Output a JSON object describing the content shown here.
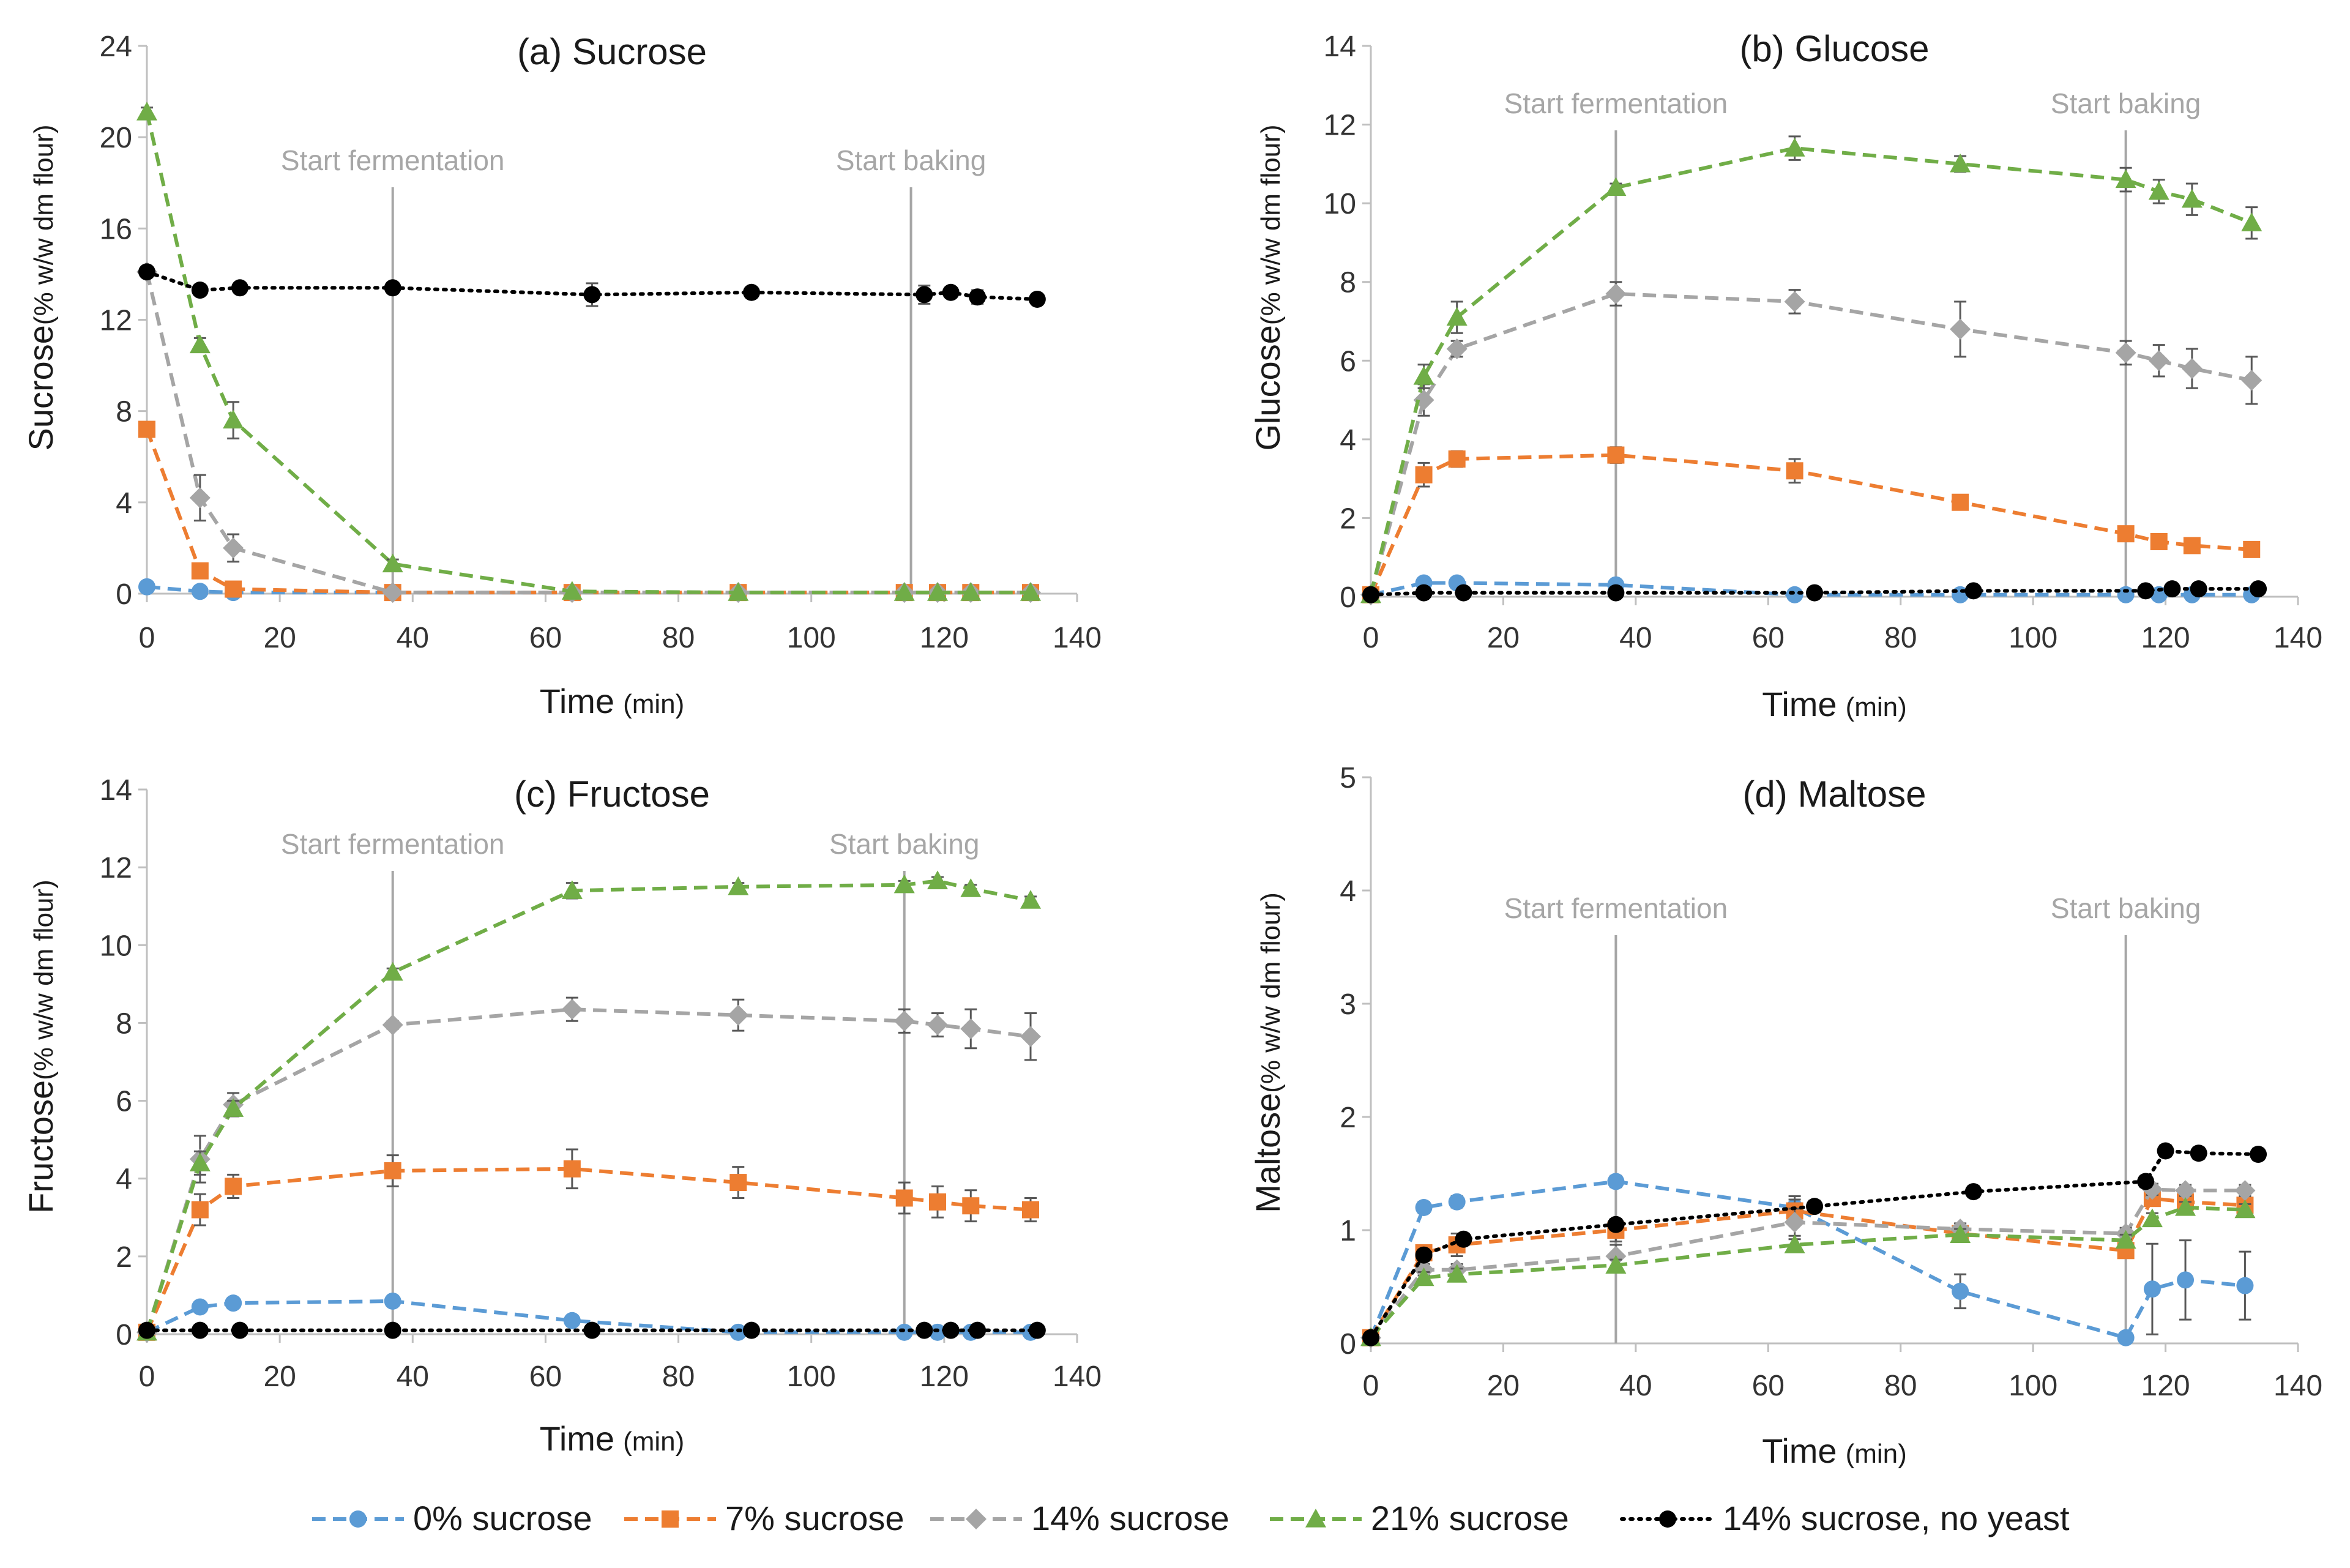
{
  "chart_data": [
    {
      "type": "line",
      "title": "(a) Sucrose",
      "ylabel_main": "Sucrose",
      "ylabel_unit": "(% w/w dm flour)",
      "xlabel_main": "Time",
      "xlabel_unit": "(min)",
      "xlim": [
        0,
        140
      ],
      "ylim": [
        0,
        24
      ],
      "xticks": [
        0,
        20,
        40,
        60,
        80,
        100,
        120,
        140
      ],
      "yticks": [
        0,
        4,
        8,
        12,
        16,
        20,
        24
      ],
      "events": [
        {
          "x": 37,
          "label": "Start fermentation"
        },
        {
          "x": 115,
          "label": "Start baking"
        }
      ],
      "series": [
        {
          "name": "0% sucrose",
          "x": [
            0,
            8,
            13,
            37,
            64,
            89,
            114,
            119,
            124,
            133
          ],
          "y": [
            0.3,
            0.1,
            0.05,
            0.05,
            0.05,
            0.05,
            0.05,
            0.05,
            0.05,
            0.05
          ],
          "err": [
            0.1,
            0,
            0,
            0,
            0,
            0,
            0,
            0,
            0,
            0
          ]
        },
        {
          "name": "7% sucrose",
          "x": [
            0,
            8,
            13,
            37,
            64,
            89,
            114,
            119,
            124,
            133
          ],
          "y": [
            7.2,
            1.0,
            0.2,
            0.05,
            0.05,
            0.05,
            0.05,
            0.05,
            0.05,
            0.05
          ],
          "err": [
            0.2,
            0.1,
            0.1,
            0,
            0,
            0,
            0,
            0,
            0,
            0
          ]
        },
        {
          "name": "14% sucrose",
          "x": [
            0,
            8,
            13,
            37,
            64,
            89,
            114,
            119,
            124,
            133
          ],
          "y": [
            14.1,
            4.2,
            2.0,
            0.05,
            0.05,
            0.05,
            0.05,
            0.05,
            0.05,
            0.05
          ],
          "err": [
            0.2,
            1.0,
            0.6,
            0,
            0,
            0,
            0,
            0,
            0,
            0
          ]
        },
        {
          "name": "21% sucrose",
          "x": [
            0,
            8,
            13,
            37,
            64,
            89,
            114,
            119,
            124,
            133
          ],
          "y": [
            21.1,
            10.9,
            7.6,
            1.3,
            0.1,
            0.05,
            0.05,
            0.05,
            0.05,
            0.05
          ],
          "err": [
            0.2,
            0.3,
            0.8,
            0.2,
            0,
            0,
            0,
            0,
            0,
            0
          ]
        },
        {
          "name": "14% sucrose, no yeast",
          "x": [
            0,
            8,
            14,
            37,
            67,
            91,
            117,
            121,
            125,
            134
          ],
          "y": [
            14.1,
            13.3,
            13.4,
            13.4,
            13.1,
            13.2,
            13.1,
            13.2,
            13.0,
            12.9
          ],
          "err": [
            0.1,
            0.2,
            0.2,
            0.2,
            0.5,
            0.2,
            0.4,
            0.2,
            0.3,
            0.2
          ]
        }
      ]
    },
    {
      "type": "line",
      "title": "(b) Glucose",
      "ylabel_main": "Glucose",
      "ylabel_unit": "(% w/w dm flour)",
      "xlabel_main": "Time",
      "xlabel_unit": "(min)",
      "xlim": [
        0,
        140
      ],
      "ylim": [
        0,
        14
      ],
      "xticks": [
        0,
        20,
        40,
        60,
        80,
        100,
        120,
        140
      ],
      "yticks": [
        0,
        2,
        4,
        6,
        8,
        10,
        12,
        14
      ],
      "events": [
        {
          "x": 37,
          "label": "Start fermentation"
        },
        {
          "x": 114,
          "label": "Start baking"
        }
      ],
      "series": [
        {
          "name": "0% sucrose",
          "x": [
            0,
            8,
            13,
            37,
            64,
            89,
            114,
            119,
            124,
            133
          ],
          "y": [
            0.05,
            0.35,
            0.35,
            0.3,
            0.05,
            0.05,
            0.05,
            0.05,
            0.05,
            0.05
          ],
          "err": [
            0,
            0.05,
            0.05,
            0.05,
            0,
            0,
            0,
            0,
            0,
            0
          ]
        },
        {
          "name": "7% sucrose",
          "x": [
            0,
            8,
            13,
            37,
            64,
            89,
            114,
            119,
            124,
            133
          ],
          "y": [
            0.05,
            3.1,
            3.5,
            3.6,
            3.2,
            2.4,
            1.6,
            1.4,
            1.3,
            1.2
          ],
          "err": [
            0,
            0.3,
            0.2,
            0.2,
            0.3,
            0.1,
            0.1,
            0.1,
            0.1,
            0.1
          ]
        },
        {
          "name": "14% sucrose",
          "x": [
            0,
            8,
            13,
            37,
            64,
            89,
            114,
            119,
            124,
            133
          ],
          "y": [
            0.05,
            5.0,
            6.3,
            7.7,
            7.5,
            6.8,
            6.2,
            6.0,
            5.8,
            5.5
          ],
          "err": [
            0,
            0.4,
            0.2,
            0.3,
            0.3,
            0.7,
            0.3,
            0.4,
            0.5,
            0.6
          ]
        },
        {
          "name": "21% sucrose",
          "x": [
            0,
            8,
            13,
            37,
            64,
            89,
            114,
            119,
            124,
            133
          ],
          "y": [
            0.05,
            5.6,
            7.1,
            10.4,
            11.4,
            11.0,
            10.6,
            10.3,
            10.1,
            9.5
          ],
          "err": [
            0,
            0.3,
            0.4,
            0.1,
            0.3,
            0.2,
            0.3,
            0.3,
            0.4,
            0.4
          ]
        },
        {
          "name": "14% sucrose, no yeast",
          "x": [
            0,
            8,
            14,
            37,
            67,
            91,
            117,
            121,
            125,
            134
          ],
          "y": [
            0.05,
            0.1,
            0.1,
            0.1,
            0.1,
            0.15,
            0.15,
            0.2,
            0.2,
            0.2
          ],
          "err": [
            0,
            0,
            0,
            0,
            0,
            0,
            0,
            0,
            0,
            0
          ]
        }
      ]
    },
    {
      "type": "line",
      "title": "(c) Fructose",
      "ylabel_main": "Fructose",
      "ylabel_unit": "(% w/w dm flour)",
      "xlabel_main": "Time",
      "xlabel_unit": "(min)",
      "xlim": [
        0,
        140
      ],
      "ylim": [
        0,
        14
      ],
      "xticks": [
        0,
        20,
        40,
        60,
        80,
        100,
        120,
        140
      ],
      "yticks": [
        0,
        2,
        4,
        6,
        8,
        10,
        12,
        14
      ],
      "events": [
        {
          "x": 37,
          "label": "Start fermentation"
        },
        {
          "x": 114,
          "label": "Start baking"
        }
      ],
      "series": [
        {
          "name": "0% sucrose",
          "x": [
            0,
            8,
            13,
            37,
            64,
            89,
            114,
            119,
            124,
            133
          ],
          "y": [
            0.05,
            0.7,
            0.8,
            0.85,
            0.35,
            0.05,
            0.05,
            0.05,
            0.05,
            0.05
          ],
          "err": [
            0,
            0.1,
            0.1,
            0.1,
            0.1,
            0,
            0,
            0,
            0,
            0
          ]
        },
        {
          "name": "7% sucrose",
          "x": [
            0,
            8,
            13,
            37,
            64,
            89,
            114,
            119,
            124,
            133
          ],
          "y": [
            0.05,
            3.2,
            3.8,
            4.2,
            4.25,
            3.9,
            3.5,
            3.4,
            3.3,
            3.2
          ],
          "err": [
            0,
            0.4,
            0.3,
            0.4,
            0.5,
            0.4,
            0.4,
            0.4,
            0.4,
            0.3
          ]
        },
        {
          "name": "14% sucrose",
          "x": [
            0,
            8,
            13,
            37,
            64,
            89,
            114,
            119,
            124,
            133
          ],
          "y": [
            0.05,
            4.5,
            5.9,
            7.95,
            8.35,
            8.2,
            8.05,
            7.95,
            7.85,
            7.65
          ],
          "err": [
            0,
            0.6,
            0.3,
            0.1,
            0.3,
            0.4,
            0.3,
            0.3,
            0.5,
            0.6
          ]
        },
        {
          "name": "21% sucrose",
          "x": [
            0,
            8,
            13,
            37,
            64,
            89,
            114,
            119,
            124,
            133
          ],
          "y": [
            0.05,
            4.4,
            5.8,
            9.3,
            11.4,
            11.5,
            11.55,
            11.65,
            11.45,
            11.15
          ],
          "err": [
            0,
            0.3,
            0.2,
            0.1,
            0.2,
            0.1,
            0.1,
            0.1,
            0.1,
            0.1
          ]
        },
        {
          "name": "14% sucrose, no yeast",
          "x": [
            0,
            8,
            14,
            37,
            67,
            91,
            117,
            121,
            125,
            134
          ],
          "y": [
            0.1,
            0.1,
            0.1,
            0.1,
            0.1,
            0.1,
            0.1,
            0.1,
            0.1,
            0.1
          ],
          "err": [
            0,
            0,
            0,
            0,
            0,
            0,
            0,
            0,
            0,
            0
          ]
        }
      ]
    },
    {
      "type": "line",
      "title": "(d) Maltose",
      "ylabel_main": "Maltose",
      "ylabel_unit": "(% w/w dm flour)",
      "xlabel_main": "Time",
      "xlabel_unit": "(min)",
      "xlim": [
        0,
        140
      ],
      "ylim": [
        0,
        5
      ],
      "xticks": [
        0,
        20,
        40,
        60,
        80,
        100,
        120,
        140
      ],
      "yticks": [
        0,
        1,
        2,
        3,
        4,
        5
      ],
      "events": [
        {
          "x": 37,
          "label": "Start fermentation"
        },
        {
          "x": 114,
          "label": "Start baking"
        }
      ],
      "series": [
        {
          "name": "0% sucrose",
          "x": [
            0,
            8,
            13,
            37,
            64,
            89,
            114,
            118,
            123,
            132
          ],
          "y": [
            0.05,
            1.2,
            1.25,
            1.43,
            1.2,
            0.46,
            0.05,
            0.48,
            0.56,
            0.51
          ],
          "err": [
            0,
            0.05,
            0.05,
            0.05,
            0.1,
            0.15,
            0,
            0.4,
            0.35,
            0.3
          ]
        },
        {
          "name": "7% sucrose",
          "x": [
            0,
            8,
            13,
            37,
            64,
            89,
            114,
            118,
            123,
            132
          ],
          "y": [
            0.05,
            0.8,
            0.87,
            1.0,
            1.17,
            0.97,
            0.82,
            1.28,
            1.25,
            1.22
          ],
          "err": [
            0,
            0.05,
            0.1,
            0.1,
            0.1,
            0.05,
            0.05,
            0.05,
            0.05,
            0.05
          ]
        },
        {
          "name": "14% sucrose",
          "x": [
            0,
            8,
            13,
            37,
            64,
            89,
            114,
            118,
            123,
            132
          ],
          "y": [
            0.05,
            0.65,
            0.65,
            0.77,
            1.07,
            1.01,
            0.97,
            1.36,
            1.35,
            1.35
          ],
          "err": [
            0,
            0.05,
            0.05,
            0.1,
            0.12,
            0.05,
            0.05,
            0.05,
            0.05,
            0.05
          ]
        },
        {
          "name": "21% sucrose",
          "x": [
            0,
            8,
            13,
            37,
            64,
            89,
            114,
            118,
            123,
            132
          ],
          "y": [
            0.05,
            0.58,
            0.61,
            0.69,
            0.87,
            0.96,
            0.91,
            1.1,
            1.2,
            1.18
          ],
          "err": [
            0,
            0.05,
            0.05,
            0.05,
            0.05,
            0.05,
            0.05,
            0.05,
            0.05,
            0.05
          ]
        },
        {
          "name": "14% sucrose, no yeast",
          "x": [
            0,
            8,
            14,
            37,
            67,
            91,
            117,
            120,
            125,
            134
          ],
          "y": [
            0.05,
            0.78,
            0.92,
            1.05,
            1.21,
            1.34,
            1.43,
            1.7,
            1.68,
            1.67
          ],
          "err": [
            0,
            0.05,
            0.05,
            0.05,
            0.05,
            0.05,
            0.05,
            0.05,
            0.05,
            0.05
          ]
        }
      ]
    }
  ],
  "series_styles": [
    {
      "color": "#5b9bd5",
      "marker": "circle",
      "dash": "dashed"
    },
    {
      "color": "#ed7d31",
      "marker": "square",
      "dash": "dashed"
    },
    {
      "color": "#a5a5a5",
      "marker": "diamond",
      "dash": "dashed"
    },
    {
      "color": "#70ad47",
      "marker": "triangle",
      "dash": "dashed"
    },
    {
      "color": "#000000",
      "marker": "circle",
      "dash": "dotted"
    }
  ],
  "colors": {
    "axis": "#bfbfbf",
    "event_line": "#a6a6a6",
    "event_text": "#a6a6a6",
    "error_bar": "#595959"
  },
  "legend": [
    {
      "label": "0% sucrose",
      "icon": "dashed-circle-marker-icon"
    },
    {
      "label": "7% sucrose",
      "icon": "dashed-square-marker-icon"
    },
    {
      "label": "14% sucrose",
      "icon": "dashed-diamond-marker-icon"
    },
    {
      "label": "21% sucrose",
      "icon": "dashed-triangle-marker-icon"
    },
    {
      "label": "14% sucrose, no yeast",
      "icon": "dotted-circle-marker-icon"
    }
  ]
}
